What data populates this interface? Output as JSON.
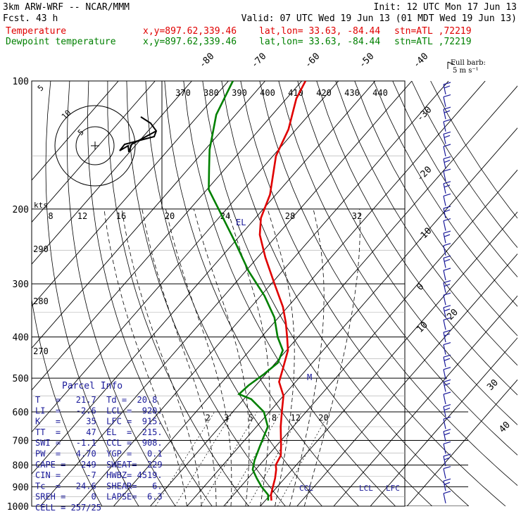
{
  "header": {
    "model": "3km ARW-WRF -- NCAR/MMM",
    "init": "Init: 12 UTC Mon 17 Jun 13",
    "fcst": "Fcst.    43 h",
    "valid": "Valid: 07 UTC Wed 19 Jun 13 (01 MDT Wed 19 Jun 13)",
    "temp_line": {
      "name": "Temperature",
      "xy": "x,y=897.62,339.46",
      "latlon": "lat,lon= 33.63, -84.44",
      "stn": "stn=ATL ,72219"
    },
    "dew_line": {
      "name": "Dewpoint temperature",
      "xy": "x,y=897.62,339.46",
      "latlon": "lat,lon= 33.63, -84.44",
      "stn": "stn=ATL ,72219"
    },
    "colors": {
      "temperature": "#e00000",
      "dewpoint": "#008000",
      "wind": "#1a1a9a"
    }
  },
  "barb_legend": {
    "line1": "Full barb:",
    "line2": "5 m s⁻¹"
  },
  "chart_data": {
    "type": "line",
    "diagram": "Skew-T log-P",
    "y_axis": {
      "scale": "log",
      "range_hPa": [
        1000,
        100
      ],
      "ticks": [
        "100",
        "200",
        "300",
        "400",
        "500",
        "600",
        "700",
        "800",
        "900",
        "1000"
      ]
    },
    "isotherm_labels": [
      "-80",
      "-70",
      "-60",
      "-50",
      "-40",
      "-30",
      "-20",
      "-10",
      "0",
      "10",
      "20",
      "30",
      "40"
    ],
    "theta_labels": [
      "370",
      "380",
      "390",
      "400",
      "410",
      "420",
      "430",
      "440"
    ],
    "dry_adiabat_side_labels": [
      "290",
      "280",
      "270"
    ],
    "mixing_ratio_labels": [
      "2",
      "3",
      "5",
      "8",
      "12",
      "20"
    ],
    "hodograph": {
      "unit": "kts",
      "ring_labels": [
        "5",
        "10"
      ],
      "speed_labels": [
        "8",
        "12",
        "16",
        "20",
        "24",
        "28",
        "32"
      ]
    },
    "levels": {
      "el": "EL",
      "m": "M",
      "ccl": "CCL",
      "lcl": "LCL",
      "lfc": "LFC"
    },
    "series": [
      {
        "name": "Temperature",
        "points": [
          [
            970,
            21.7
          ],
          [
            940,
            20.2
          ],
          [
            900,
            18.8
          ],
          [
            860,
            17.4
          ],
          [
            820,
            15.6
          ],
          [
            800,
            14.4
          ],
          [
            760,
            13.5
          ],
          [
            720,
            11.2
          ],
          [
            650,
            6.6
          ],
          [
            600,
            3.4
          ],
          [
            550,
            0.0
          ],
          [
            510,
            -4.5
          ],
          [
            480,
            -6.3
          ],
          [
            430,
            -9.6
          ],
          [
            400,
            -13.0
          ],
          [
            370,
            -16.8
          ],
          [
            340,
            -21.3
          ],
          [
            300,
            -29.1
          ],
          [
            260,
            -37.9
          ],
          [
            230,
            -44.8
          ],
          [
            210,
            -48.5
          ],
          [
            185,
            -51.6
          ],
          [
            150,
            -59.2
          ],
          [
            130,
            -62.1
          ],
          [
            110,
            -67.3
          ],
          [
            100,
            -69.0
          ]
        ]
      },
      {
        "name": "Dewpoint temperature",
        "points": [
          [
            970,
            20.8
          ],
          [
            940,
            19.4
          ],
          [
            900,
            15.7
          ],
          [
            860,
            12.4
          ],
          [
            820,
            9.2
          ],
          [
            780,
            7.5
          ],
          [
            720,
            5.5
          ],
          [
            650,
            3.1
          ],
          [
            600,
            -1.5
          ],
          [
            560,
            -8.0
          ],
          [
            545,
            -12.5
          ],
          [
            520,
            -12.0
          ],
          [
            490,
            -10.5
          ],
          [
            460,
            -9.4
          ],
          [
            430,
            -11.0
          ],
          [
            400,
            -15.6
          ],
          [
            360,
            -21.1
          ],
          [
            320,
            -29.0
          ],
          [
            280,
            -39.2
          ],
          [
            240,
            -49.6
          ],
          [
            200,
            -62.2
          ],
          [
            180,
            -69.5
          ],
          [
            160,
            -74.6
          ],
          [
            145,
            -78.8
          ],
          [
            120,
            -85.3
          ],
          [
            100,
            -88.8
          ]
        ]
      }
    ]
  },
  "parcel_info": {
    "title": "Parcel Info",
    "rows": [
      "T   =   21.7  Td =  20.8",
      "LI  =   -2.6  LCL =  920.",
      "K   =     35  LFC =  915.",
      "TT  =     47  EL  =  215.",
      "SWI =   -1.1  CCL =  908.",
      "PW  =   4.70  YGP =   0.1",
      "CAPE =   249  SWEAT=  229",
      "CIN =     -7  HWBZ= 4519.",
      "Tc  =   24.6  SHEAR=   6.",
      "SREH =     0  LAPSE=  6.3",
      "CELL = 257/25"
    ]
  }
}
